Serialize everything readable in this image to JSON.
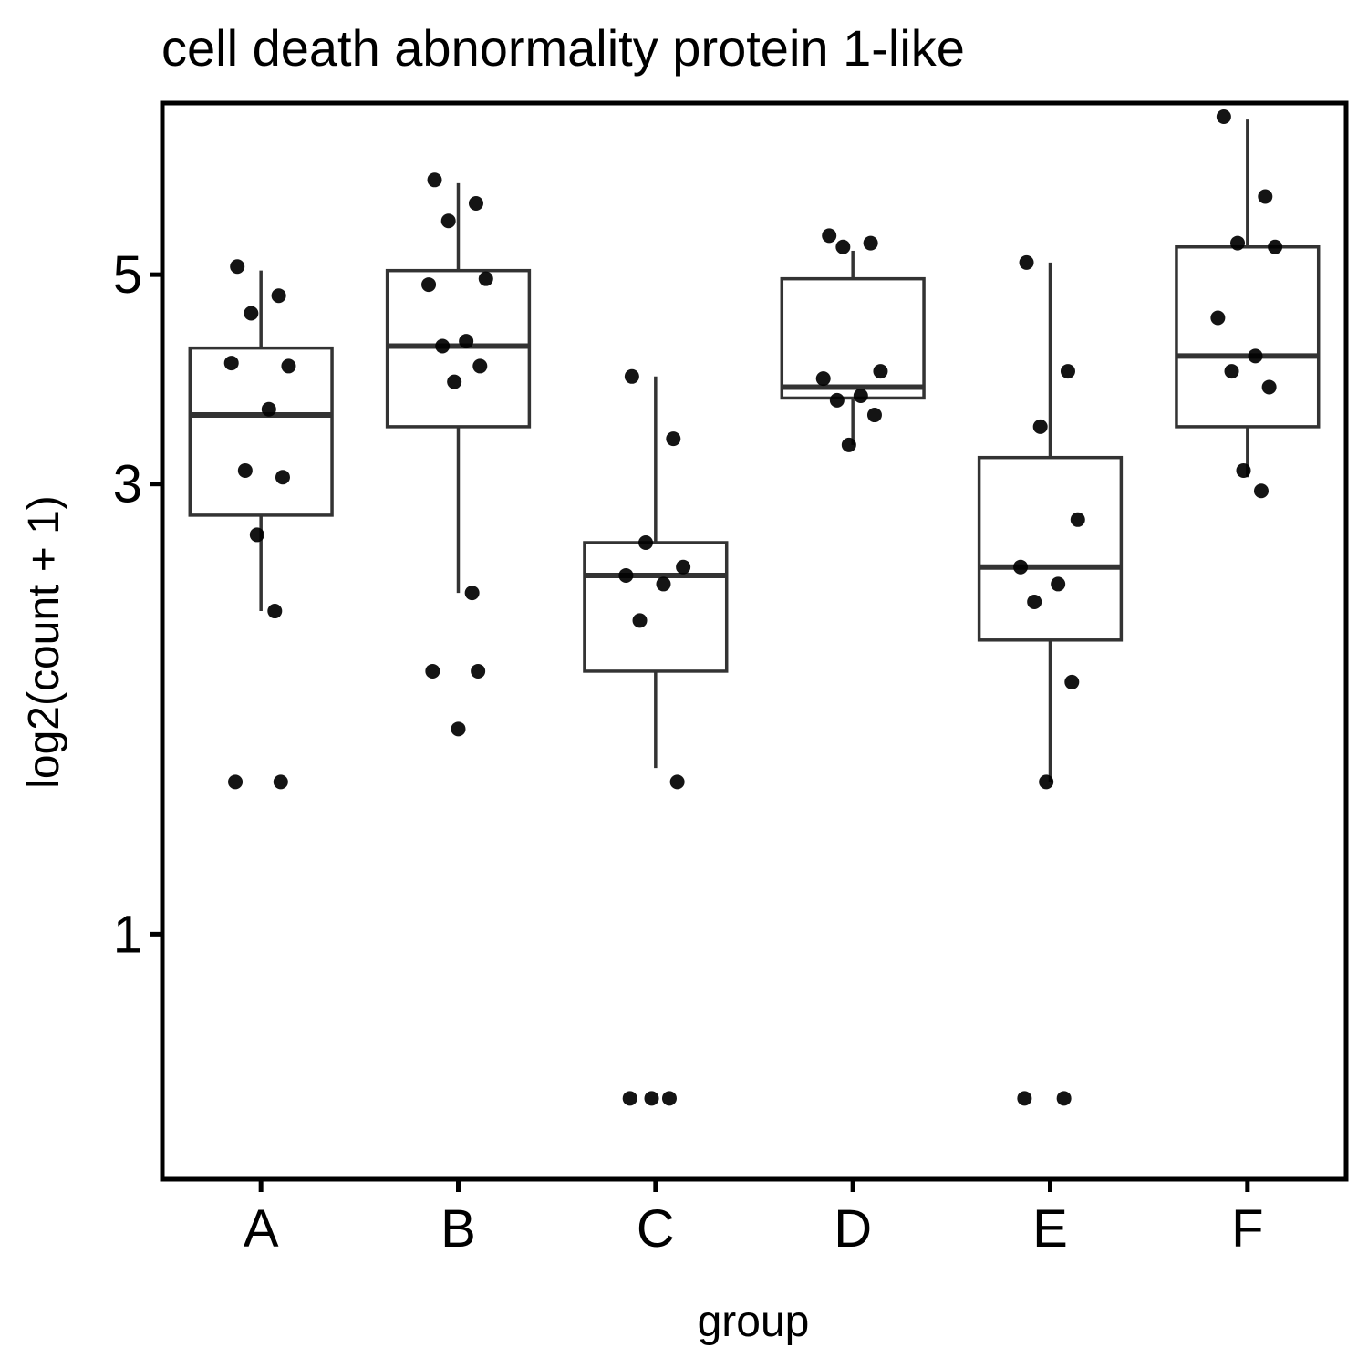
{
  "chart_data": {
    "type": "boxplot",
    "title": "cell death abnormality protein 1-like",
    "xlabel": "group",
    "ylabel": "log2(count + 1)",
    "scale": "log",
    "yticks": [
      1,
      3,
      5
    ],
    "ylim": [
      0.55,
      7.6
    ],
    "grid": false,
    "legend": "none",
    "categories": [
      "A",
      "B",
      "C",
      "D",
      "E",
      "F"
    ],
    "boxes": [
      {
        "group": "A",
        "lower_whisker": 2.2,
        "q1": 2.78,
        "median": 3.55,
        "q3": 4.18,
        "upper_whisker": 5.05
      },
      {
        "group": "B",
        "lower_whisker": 2.3,
        "q1": 3.45,
        "median": 4.2,
        "q3": 5.05,
        "upper_whisker": 6.25
      },
      {
        "group": "C",
        "lower_whisker": 1.5,
        "q1": 1.9,
        "median": 2.4,
        "q3": 2.6,
        "upper_whisker": 3.9
      },
      {
        "group": "D",
        "lower_whisker": 3.3,
        "q1": 3.7,
        "median": 3.8,
        "q3": 4.95,
        "upper_whisker": 5.3
      },
      {
        "group": "E",
        "lower_whisker": 1.45,
        "q1": 2.05,
        "median": 2.45,
        "q3": 3.2,
        "upper_whisker": 5.15
      },
      {
        "group": "F",
        "lower_whisker": 3.05,
        "q1": 3.45,
        "median": 4.1,
        "q3": 5.35,
        "upper_whisker": 7.3
      }
    ],
    "points": [
      {
        "group": "A",
        "values": [
          5.1,
          4.75,
          4.55,
          4.0,
          4.03,
          3.6,
          3.1,
          3.05,
          2.65,
          2.2,
          1.45,
          1.45
        ]
      },
      {
        "group": "B",
        "values": [
          6.3,
          5.95,
          5.7,
          4.95,
          4.88,
          4.25,
          4.2,
          4.0,
          3.85,
          2.3,
          1.9,
          1.9,
          1.65
        ]
      },
      {
        "group": "C",
        "values": [
          3.9,
          3.35,
          2.6,
          2.45,
          2.4,
          2.35,
          2.15,
          1.45,
          0.67,
          0.67,
          0.67
        ]
      },
      {
        "group": "D",
        "values": [
          5.5,
          5.4,
          5.35,
          3.95,
          3.88,
          3.72,
          3.68,
          3.55,
          3.3
        ]
      },
      {
        "group": "E",
        "values": [
          5.15,
          3.95,
          3.45,
          2.75,
          2.45,
          2.35,
          2.25,
          1.85,
          1.45,
          0.67,
          0.67
        ]
      },
      {
        "group": "F",
        "values": [
          7.35,
          6.05,
          5.4,
          5.35,
          4.5,
          4.1,
          3.95,
          3.8,
          3.1,
          2.95
        ]
      }
    ]
  }
}
